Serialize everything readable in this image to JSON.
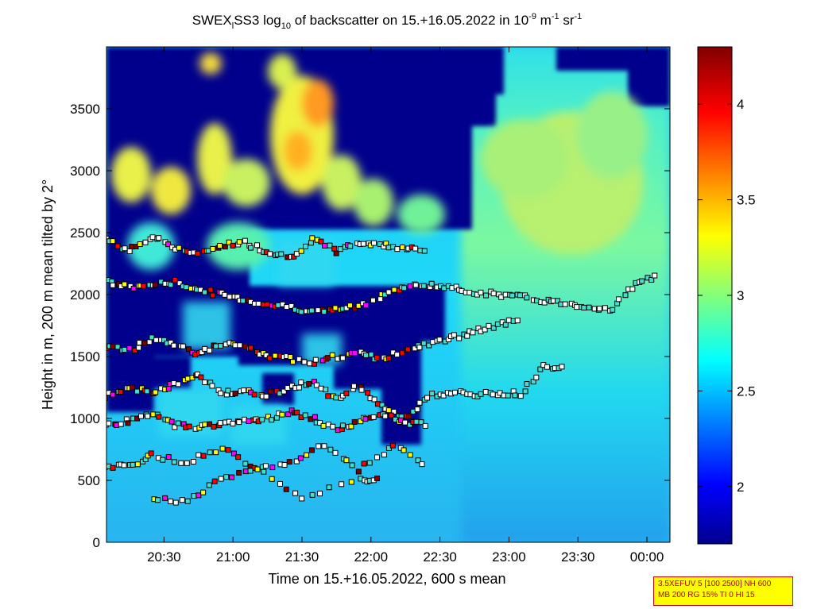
{
  "chart_data": {
    "type": "heatmap",
    "title": {
      "prefix": "SWEX",
      "sub1": "l",
      "part2": "SS3 log",
      "sub2": "10",
      "part3": " of backscatter on 15.+16.05.2022 in 10",
      "sup1": "-9",
      "part4": " m",
      "sup2": "-1",
      "part5": " sr",
      "sup3": "-1"
    },
    "xlabel": "Time on 15.+16.05.2022, 600 s mean",
    "ylabel": "Height in m, 200 m mean tilted by 2°",
    "x_ticks": [
      "20:30",
      "21:00",
      "21:30",
      "22:00",
      "22:30",
      "23:00",
      "23:30",
      "00:00"
    ],
    "x_tick_minutes": [
      1230,
      1260,
      1290,
      1320,
      1350,
      1380,
      1410,
      1440
    ],
    "xlim_minutes": [
      1205,
      1450
    ],
    "y_ticks": [
      0,
      500,
      1000,
      1500,
      2000,
      2500,
      3000,
      3500
    ],
    "ylim": [
      0,
      4000
    ],
    "colorbar": {
      "ticks": [
        "2",
        "2.5",
        "3",
        "3.5",
        "4"
      ],
      "tick_values": [
        2,
        2.5,
        3,
        3.5,
        4
      ],
      "range": [
        1.7,
        4.3
      ],
      "colormap": "jet"
    },
    "layer_markers": {
      "colors": [
        "#ffffff",
        "#40e0d0",
        "#ffff00",
        "#ff00ff",
        "#ff0000",
        "#800000"
      ],
      "layers": [
        {
          "t": [
            1205,
            1215,
            1225,
            1235,
            1245,
            1255,
            1265,
            1275,
            1285,
            1295,
            1305,
            1315,
            1325,
            1335,
            1345
          ],
          "h": [
            2450,
            2350,
            2470,
            2380,
            2320,
            2400,
            2420,
            2350,
            2300,
            2440,
            2350,
            2420,
            2400,
            2380,
            2360
          ]
        },
        {
          "t": [
            1205,
            1215,
            1225,
            1235,
            1245,
            1255,
            1265,
            1275,
            1285,
            1295,
            1305,
            1315,
            1325,
            1335,
            1345,
            1355,
            1365,
            1375,
            1385,
            1395,
            1405,
            1415,
            1425,
            1435,
            1445
          ],
          "h": [
            2100,
            2060,
            2080,
            2100,
            2040,
            2000,
            1960,
            1920,
            1900,
            1860,
            1880,
            1900,
            2000,
            2060,
            2080,
            2050,
            2020,
            2000,
            1980,
            1950,
            1930,
            1900,
            1880,
            2100,
            2150
          ]
        },
        {
          "t": [
            1205,
            1215,
            1225,
            1235,
            1245,
            1255,
            1265,
            1275,
            1285,
            1295,
            1305,
            1315,
            1325,
            1335,
            1345,
            1355,
            1365,
            1375,
            1385
          ],
          "h": [
            1580,
            1550,
            1650,
            1600,
            1520,
            1600,
            1580,
            1500,
            1480,
            1460,
            1500,
            1520,
            1480,
            1550,
            1600,
            1650,
            1700,
            1750,
            1800
          ]
        },
        {
          "t": [
            1205,
            1215,
            1225,
            1235,
            1245,
            1255,
            1265,
            1275,
            1285,
            1295,
            1305,
            1315,
            1325,
            1335,
            1345,
            1355,
            1365,
            1375,
            1385,
            1395,
            1405
          ],
          "h": [
            1180,
            1250,
            1200,
            1280,
            1350,
            1200,
            1230,
            1190,
            1250,
            1300,
            1150,
            1260,
            1100,
            1000,
            1180,
            1210,
            1190,
            1200,
            1200,
            1420,
            1420
          ]
        },
        {
          "t": [
            1205,
            1215,
            1225,
            1235,
            1245,
            1255,
            1265,
            1275,
            1285,
            1295,
            1305,
            1315,
            1325,
            1335,
            1345
          ],
          "h": [
            950,
            980,
            1030,
            950,
            930,
            960,
            980,
            1000,
            1050,
            1000,
            900,
            980,
            1050,
            960,
            950
          ]
        },
        {
          "t": [
            1205,
            1215,
            1225,
            1240,
            1255,
            1270,
            1285,
            1300,
            1315,
            1330,
            1345
          ],
          "h": [
            620,
            620,
            700,
            650,
            760,
            600,
            650,
            780,
            580,
            800,
            620
          ]
        },
        {
          "t": [
            1225,
            1240,
            1255,
            1270,
            1290,
            1315,
            1325
          ],
          "h": [
            340,
            340,
            500,
            600,
            350,
            500,
            500
          ]
        }
      ]
    }
  },
  "info_box": {
    "line1": "3.5XEFUV 5 [100 2500] NH 600",
    "line2": "MB 200 RG 15% TI 0 HI 15"
  }
}
